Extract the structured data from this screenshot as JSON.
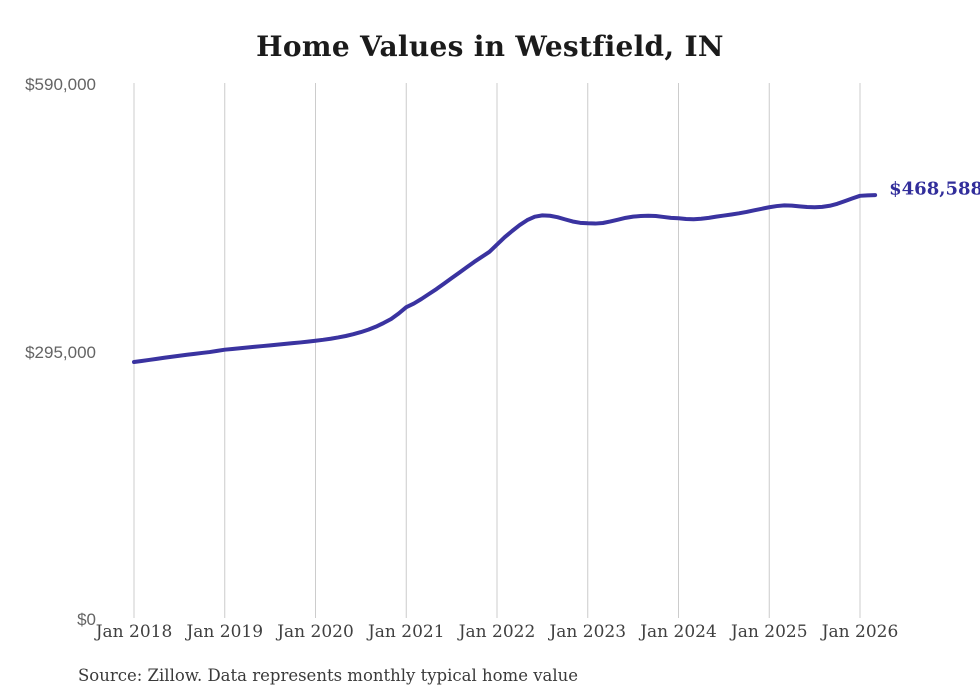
{
  "title": "Home Values in Westfield, IN",
  "source_note": "Source: Zillow. Data represents monthly typical home value",
  "end_label": "$468,588",
  "colors": {
    "line": "#3a33a0",
    "end_label": "#322e9b",
    "grid": "#cccccc",
    "title": "#1b1b1b",
    "y_tick_label": "#646464",
    "x_tick_label": "#404040",
    "source": "#3a3a3a",
    "background": "#ffffff"
  },
  "chart_data": {
    "type": "line",
    "title": "Home Values in Westfield, IN",
    "xlabel": "",
    "ylabel": "",
    "ylim": [
      0,
      590000
    ],
    "y_ticks": [
      590000,
      295000,
      0
    ],
    "y_tick_labels": [
      "$590,000",
      "$295,000",
      "$0"
    ],
    "x_tick_labels": [
      "Jan 2018",
      "Jan 2019",
      "Jan 2020",
      "Jan 2021",
      "Jan 2022",
      "Jan 2023",
      "Jan 2024",
      "Jan 2025",
      "Jan 2026"
    ],
    "x_unit": "month",
    "x_range": "Jan 2018 to Mar 2026",
    "grid": "vertical-only",
    "legend": "none",
    "end_value": 468588,
    "series": [
      {
        "name": "Typical home value",
        "values": [
          284500,
          285600,
          286800,
          288000,
          289200,
          290300,
          291400,
          292500,
          293500,
          294500,
          295500,
          296800,
          298100,
          298900,
          299700,
          300500,
          301300,
          302100,
          302900,
          303700,
          304500,
          305300,
          306100,
          307000,
          308000,
          309000,
          310200,
          311600,
          313200,
          315200,
          317500,
          320200,
          323500,
          327500,
          332000,
          338000,
          345000,
          349000,
          354000,
          359500,
          365000,
          371000,
          377000,
          383000,
          389000,
          395000,
          400500,
          406000,
          414000,
          422000,
          429000,
          435500,
          441000,
          444800,
          446200,
          445800,
          444200,
          441800,
          439500,
          438000,
          437500,
          437200,
          437800,
          439500,
          441500,
          443500,
          444800,
          445500,
          445800,
          445500,
          444500,
          443500,
          443000,
          442200,
          442000,
          442500,
          443500,
          444800,
          446000,
          447200,
          448500,
          450000,
          451800,
          453500,
          455200,
          456500,
          457300,
          457000,
          456200,
          455500,
          455200,
          455600,
          456800,
          459000,
          462000,
          465000,
          467800,
          468300,
          468588
        ]
      }
    ]
  }
}
